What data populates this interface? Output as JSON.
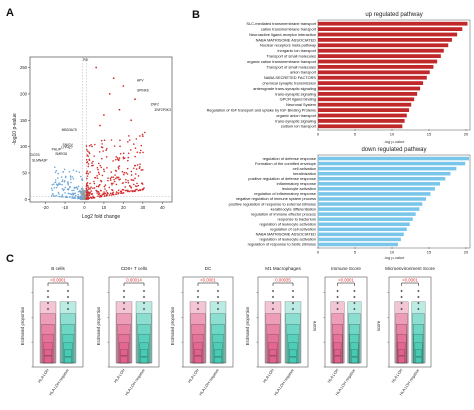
{
  "panels": {
    "A": {
      "letter": "A",
      "xlabel": "Log2 fold change",
      "ylabel": "-log10 p-value",
      "xticks": [
        "-20",
        "-10",
        "0",
        "10",
        "20",
        "30",
        "40"
      ],
      "yticks": [
        "0",
        "50",
        "100",
        "150",
        "200",
        "250"
      ],
      "labels": [
        {
          "text": "PIK",
          "side": "left"
        },
        {
          "text": "APV",
          "side": "right"
        },
        {
          "text": "SPINK6",
          "side": "right"
        },
        {
          "text": "ZNF2",
          "side": "right"
        },
        {
          "text": "ZNF2P3K3",
          "side": "right"
        },
        {
          "text": "MBD3A75",
          "side": "left"
        },
        {
          "text": "SNIGV",
          "side": "left"
        },
        {
          "text": "LYP4Z7",
          "side": "left"
        },
        {
          "text": "PHLIP",
          "side": "left"
        },
        {
          "text": "SMRG8",
          "side": "left"
        },
        {
          "text": "DCSS",
          "side": "left"
        },
        {
          "text": "SLMNA3P",
          "side": "left"
        }
      ],
      "colors": {
        "up": "#d42a2a",
        "down": "#6fa8d8",
        "ns": "#9a9a9a"
      }
    },
    "B": {
      "letter": "B",
      "up": {
        "title": "up regulated pathway",
        "xlabel": "-log p-value",
        "color": "#c0282a",
        "xticks": [
          "0",
          "5",
          "10",
          "15",
          "20"
        ],
        "max": 20,
        "terms": [
          "SLC-mediated transmembrane transport",
          "cation transmembrane transport",
          "Neuroactive ligand-receptor interaction",
          "NABA MATRISOME ASSOCIATED",
          "Nuclear receptors meta pathway",
          "inorganic ion transport",
          "Transport of small molecules",
          "organic cation transmembrane transport",
          "Transport of small molecules",
          "anion transport",
          "NABA SECRETED FACTORS",
          "chemical synaptic transmission",
          "anterograde trans-synaptic signaling",
          "trans-synaptic signaling",
          "GPCR ligand binding",
          "Neuronal System",
          "Regulation of IGF transport and uptake by IGF Binding Proteins",
          "organic anion transport",
          "trans-synaptic signaling",
          "sodium ion transport"
        ],
        "values": [
          20.2,
          19.5,
          18.8,
          18.1,
          17.6,
          17.0,
          16.6,
          16.1,
          15.6,
          15.1,
          14.7,
          14.2,
          13.8,
          13.4,
          13.0,
          12.6,
          12.3,
          12.0,
          11.7,
          11.4
        ]
      },
      "down": {
        "title": "down regulated pathway",
        "xlabel": "-log p-value",
        "color": "#79c6ea",
        "xticks": [
          "0",
          "5",
          "10",
          "15",
          "20"
        ],
        "max": 20,
        "terms": [
          "regulation of defense response",
          "Formation of the cornified envelope",
          "cell activation",
          "keratinization",
          "positive regulation of defense response",
          "inflammatory response",
          "leukocyte activation",
          "regulation of inflammatory response",
          "negative regulation of immune system process",
          "positive regulation of response to external stimulus",
          "keratinocyte differentiation",
          "regulation of immune effector process",
          "response to bacterium",
          "regulation of leukocyte activation",
          "regulation of cell activation",
          "NABA MATRISOME ASSOCIATED",
          "regulation of leukocyte activation",
          "regulation of response to biotic stimulus"
        ],
        "values": [
          22.8,
          19.9,
          18.7,
          17.9,
          17.2,
          16.5,
          15.8,
          15.2,
          14.6,
          14.1,
          13.7,
          13.2,
          12.8,
          12.4,
          12.0,
          11.6,
          11.2,
          10.8
        ]
      }
    },
    "C": {
      "letter": "C",
      "xcat_low": "HLA LOH",
      "xcat_high": "HLA LOH negative",
      "colors": {
        "loh": "#e05a86",
        "neg": "#3cc9b0",
        "bracket": "#000000",
        "pval": "#e0302c"
      },
      "plots": [
        {
          "title": "B cells",
          "ylabel": "Estimated proportion",
          "pvalue": "<0.0001"
        },
        {
          "title": "CD8+ T cells",
          "ylabel": "Estimated proportion",
          "pvalue": "0.00014"
        },
        {
          "title": "DC",
          "ylabel": "Estimated proportion",
          "pvalue": "<0.0001"
        },
        {
          "title": "M1 Macrophages",
          "ylabel": "Estimated proportion",
          "pvalue": "0.00035"
        },
        {
          "title": "Immune Score",
          "ylabel": "score",
          "pvalue": "<0.0001"
        },
        {
          "title": "Microenvironment Score",
          "ylabel": "score",
          "pvalue": "<0.0001"
        }
      ]
    }
  }
}
